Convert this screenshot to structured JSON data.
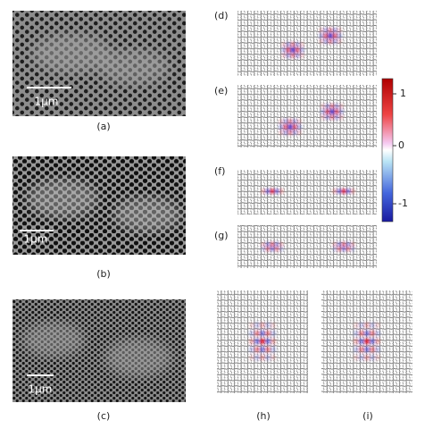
{
  "panels": {
    "a": {
      "label": "(a)",
      "scale_bar": "1μm"
    },
    "b": {
      "label": "(b)",
      "scale_bar": "1μm"
    },
    "c": {
      "label": "(c)",
      "scale_bar": "1μm"
    },
    "d": {
      "label": "(d)"
    },
    "e": {
      "label": "(e)"
    },
    "f": {
      "label": "(f)"
    },
    "g": {
      "label": "(g)"
    },
    "h": {
      "label": "(h)"
    },
    "i": {
      "label": "(i)"
    }
  },
  "colorbar": {
    "ticks": [
      "1",
      "0",
      "-1"
    ]
  }
}
